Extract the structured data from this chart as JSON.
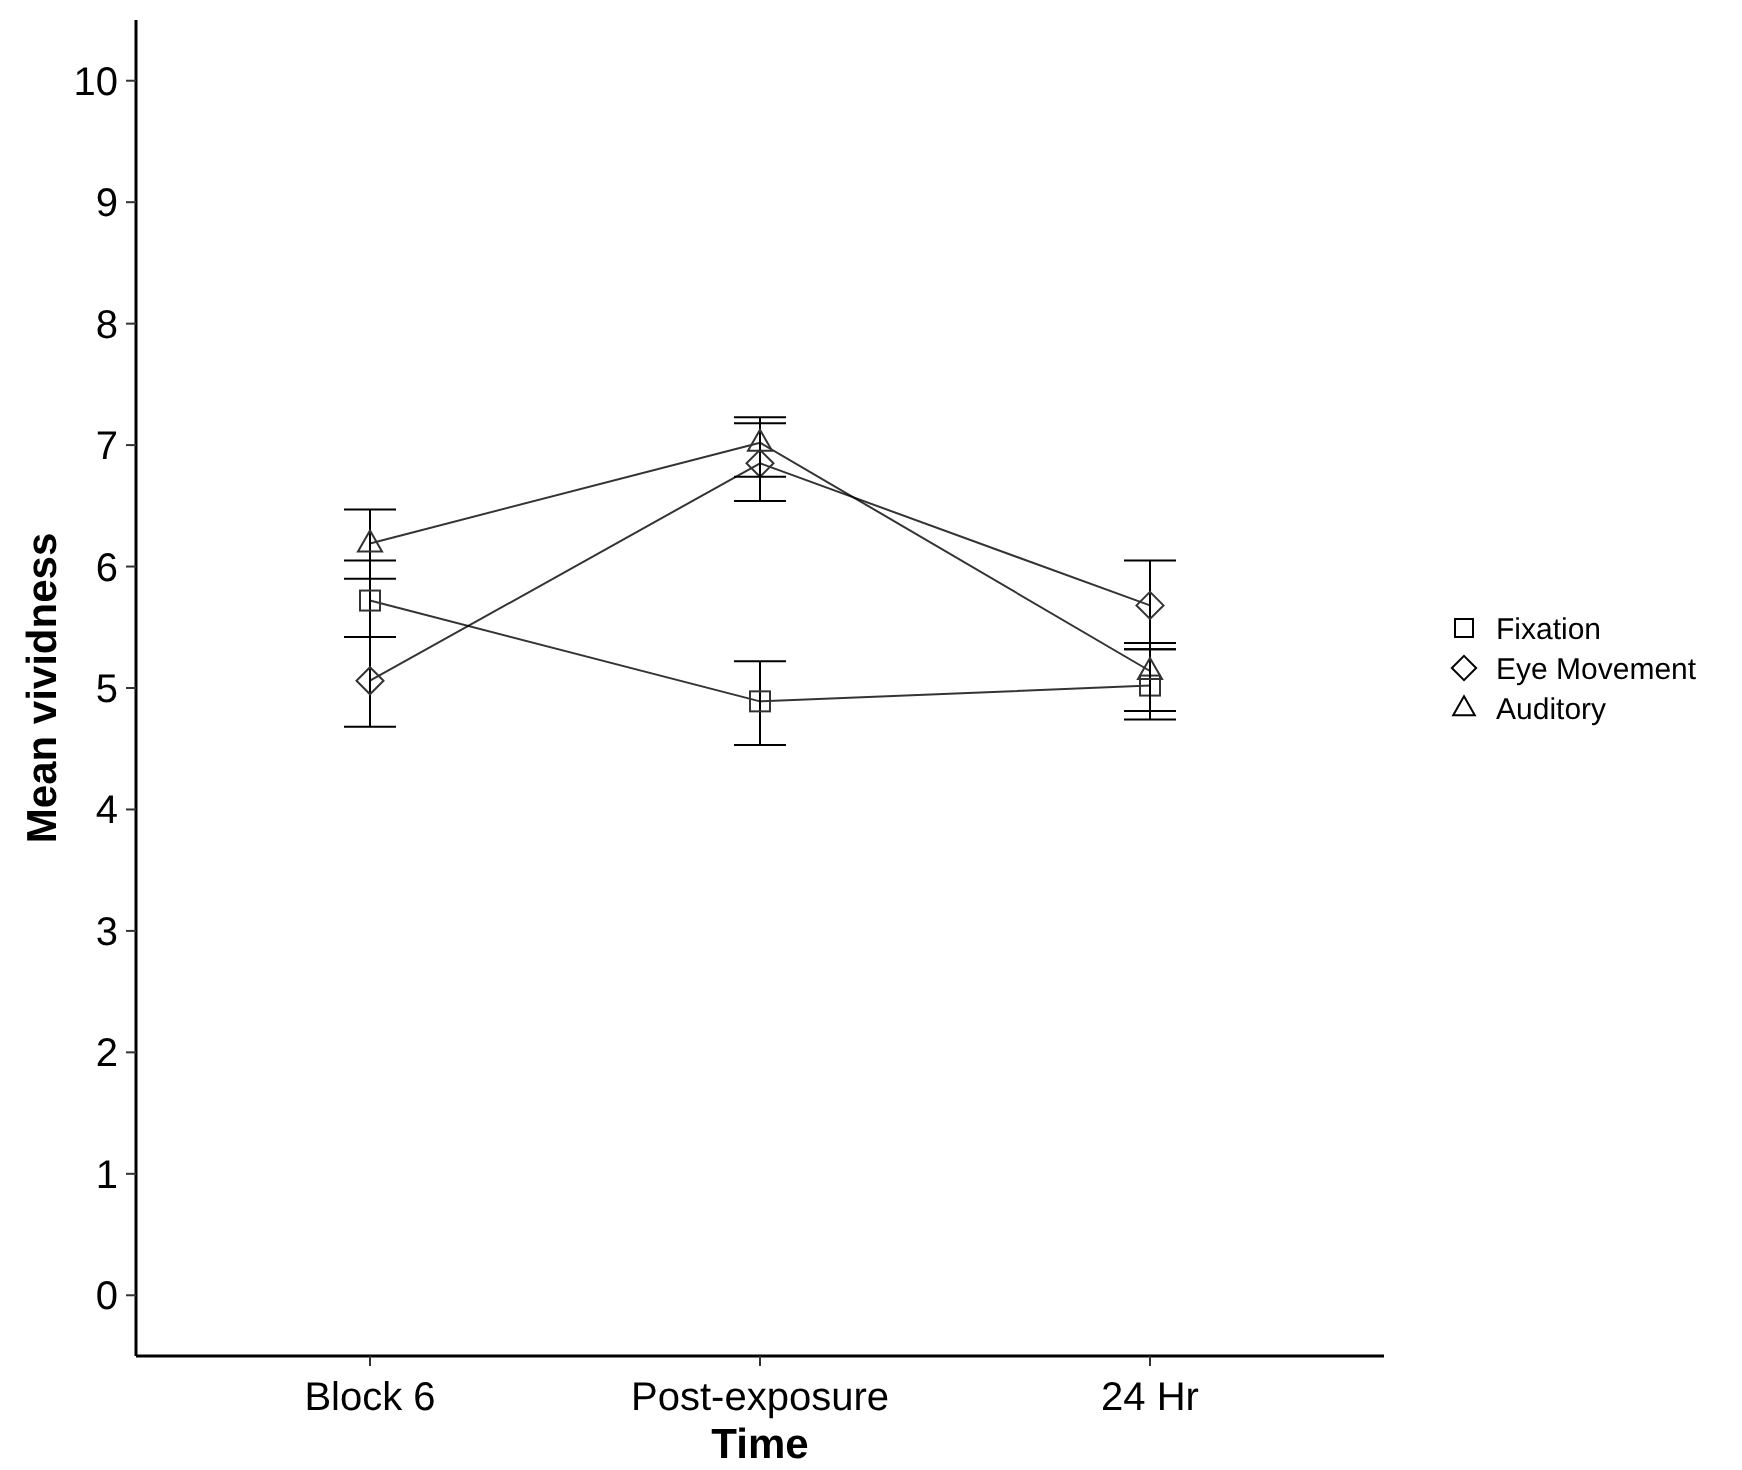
{
  "chart_data": {
    "type": "line",
    "xlabel": "Time",
    "ylabel": "Mean vividness",
    "categories": [
      "Block 6",
      "Post-exposure",
      "24 Hr"
    ],
    "series": [
      {
        "name": "Fixation",
        "color": "#000000",
        "marker": "square",
        "values": [
          5.72,
          4.89,
          5.02
        ],
        "errors": [
          [
            5.42,
            6.05
          ],
          [
            4.53,
            5.22
          ],
          [
            4.74,
            5.32
          ]
        ]
      },
      {
        "name": "Eye Movement",
        "color": "#000000",
        "marker": "diamond",
        "values": [
          5.06,
          6.85,
          5.68
        ],
        "errors": [
          [
            4.68,
            5.42
          ],
          [
            6.54,
            7.18
          ],
          [
            5.32,
            6.05
          ]
        ]
      },
      {
        "name": "Auditory",
        "color": "#000000",
        "marker": "triangle",
        "values": [
          6.19,
          7.02,
          5.14
        ],
        "errors": [
          [
            5.9,
            6.47
          ],
          [
            6.74,
            7.23
          ],
          [
            4.81,
            5.37
          ]
        ]
      }
    ],
    "ylim": [
      -0.5,
      10.5
    ],
    "yticks": [
      0,
      1,
      2,
      3,
      4,
      5,
      6,
      7,
      8,
      9,
      10
    ],
    "grid": false,
    "legend": "right"
  }
}
